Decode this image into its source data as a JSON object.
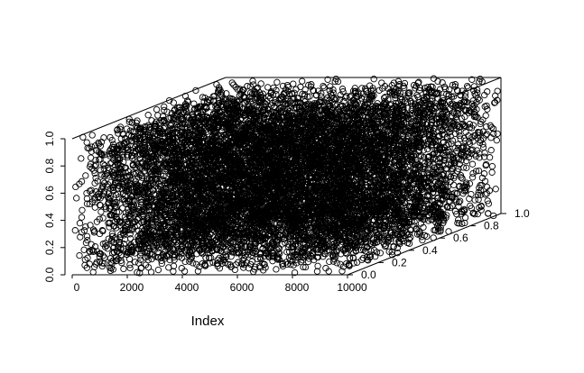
{
  "chart_data": {
    "type": "scatter",
    "projection": "3d",
    "title": "",
    "xlabel": "Index",
    "ylabel": "",
    "zlabel": "",
    "xlim": [
      0,
      10000
    ],
    "ylim": [
      0,
      1
    ],
    "zlim": [
      0,
      1
    ],
    "x_ticks": [
      "0",
      "2000",
      "4000",
      "6000",
      "8000",
      "10000"
    ],
    "y_ticks": [
      "0.0",
      "0.2",
      "0.4",
      "0.6",
      "0.8",
      "1.0"
    ],
    "z_ticks": [
      "0.0",
      "0.2",
      "0.4",
      "0.6",
      "0.8",
      "1.0"
    ],
    "x_tick_values": [
      0,
      2000,
      4000,
      6000,
      8000,
      10000
    ],
    "y_tick_values": [
      0,
      0.2,
      0.4,
      0.6,
      0.8,
      1.0
    ],
    "z_tick_values": [
      0,
      0.2,
      0.4,
      0.6,
      0.8,
      1.0
    ],
    "n_points": 10000,
    "point_distribution": "x = index 1..10000; y and z approximately uniform on [0, 1]",
    "marker": "open-circle",
    "marker_color": "#000000",
    "grid": false,
    "box": true
  }
}
